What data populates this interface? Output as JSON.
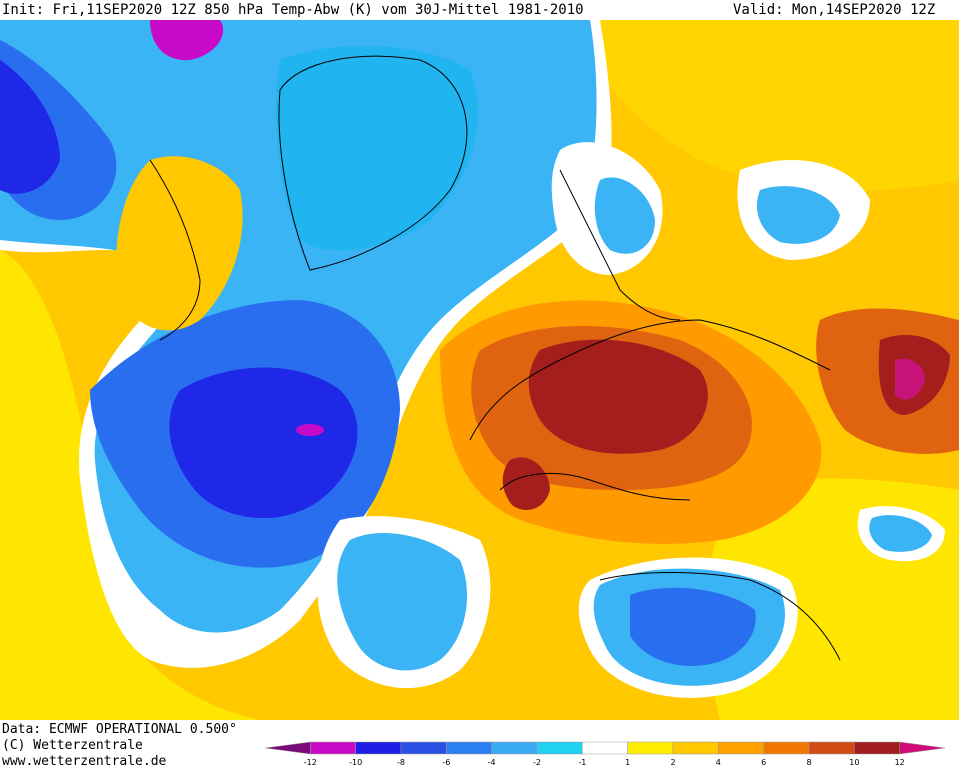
{
  "header": {
    "init_text": "Init: Fri,11SEP2020 12Z 850 hPa Temp-Abw (K) vom 30J-Mittel 1981-2010",
    "valid_text": "Valid: Mon,14SEP2020 12Z"
  },
  "footer": {
    "data_line": "Data: ECMWF OPERATIONAL 0.500°",
    "copyright_line": "(C) Wetterzentrale",
    "url_line": "www.wetterzentrale.de"
  },
  "legend": {
    "ticks": [
      "-12",
      "-10",
      "-8",
      "-6",
      "-4",
      "-2",
      "-1",
      "1",
      "2",
      "4",
      "6",
      "8",
      "10",
      "12"
    ],
    "colors": [
      "#7a0a7a",
      "#c80ac8",
      "#1e1ee6",
      "#2a50e6",
      "#2a80f0",
      "#3aaaf5",
      "#20d2f0",
      "#ffffff",
      "#ffee00",
      "#ffc800",
      "#ffa000",
      "#f07800",
      "#d24b14",
      "#a01e1e",
      "#d20a78"
    ]
  },
  "map_colors": {
    "deep_blue": "#1e28e6",
    "blue": "#2a6ef0",
    "light_blue": "#3ab4f5",
    "cyan": "#20d2f0",
    "yellow": "#ffee00",
    "gold": "#ffc800",
    "orange": "#ff9a00",
    "dark_orange": "#e0640f",
    "red_brown": "#a51e1e",
    "magenta": "#c8147a",
    "purple": "#a000a0"
  }
}
